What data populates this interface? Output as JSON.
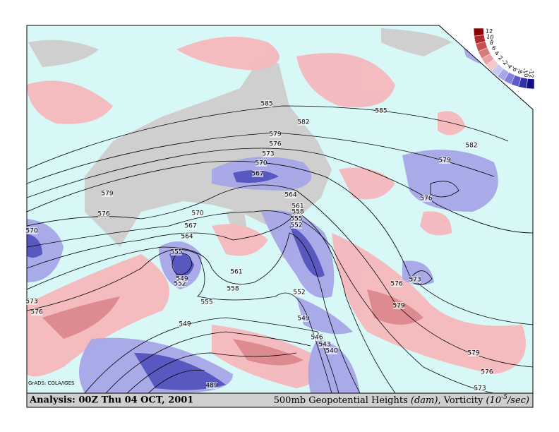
{
  "map": {
    "credit": "GrADS: COLA/IGES",
    "footer_left": "Analysis: 00Z Thu 04 OCT, 2001",
    "footer_right": [
      "500mb Geopotential Heights ",
      "(dam)",
      ", Vorticity ",
      "(10",
      "-5",
      "/sec)"
    ],
    "legend_labels": [
      12,
      10,
      8,
      6,
      4,
      2,
      -2,
      -4,
      -6,
      -8,
      -10,
      -12
    ],
    "contour_labels": [
      585,
      585,
      582,
      582,
      579,
      579,
      579,
      579,
      579,
      576,
      576,
      576,
      576,
      576,
      576,
      573,
      573,
      573,
      573,
      570,
      570,
      570,
      567,
      567,
      564,
      564,
      561,
      561,
      558,
      558,
      555,
      555,
      555,
      552,
      552,
      552,
      549,
      549,
      549,
      546,
      543,
      540,
      489
    ]
  }
}
